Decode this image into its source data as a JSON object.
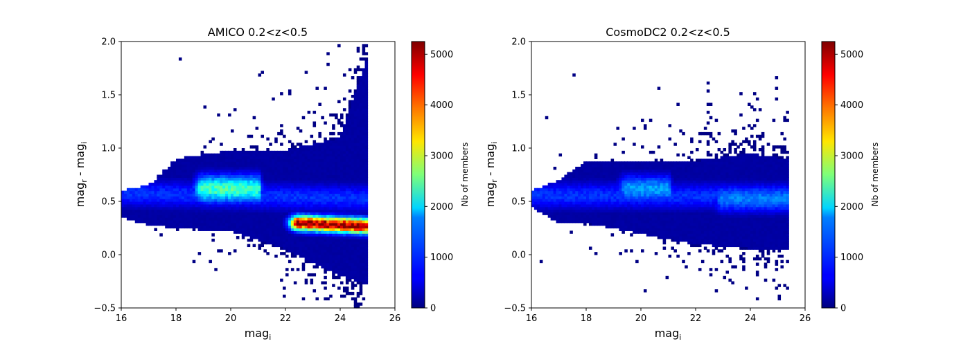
{
  "chart_data": [
    {
      "type": "heatmap",
      "title": "AMICO 0.2<z<0.5",
      "xlabel": "mag",
      "xlabel_sub": "i",
      "ylabel": {
        "p1": "mag",
        "s1": "r",
        "p2": " - mag",
        "s2": "i"
      },
      "xlim": [
        16,
        26
      ],
      "ylim": [
        -0.5,
        2.0
      ],
      "xticks": [
        "16",
        "18",
        "20",
        "22",
        "24",
        "26"
      ],
      "yticks": [
        "−0.5",
        "0.0",
        "0.5",
        "1.0",
        "1.5",
        "2.0"
      ],
      "colorbar": {
        "label": "Nb of members",
        "range": [
          0,
          5250
        ],
        "ticks": [
          "0",
          "1000",
          "2000",
          "3000",
          "4000",
          "5000"
        ],
        "colormap": "jet"
      },
      "grid": false,
      "density_features": [
        {
          "x": [
            16.0,
            25.1
          ],
          "y": [
            0.58,
            0.53
          ],
          "peak": 900,
          "note": "main band"
        },
        {
          "x": [
            19.0,
            21.0
          ],
          "y": [
            0.62,
            0.62
          ],
          "peak": 2300,
          "note": "red-sequence ridge"
        },
        {
          "x": [
            22.5,
            25.0
          ],
          "y": [
            0.3,
            0.27
          ],
          "peak": 5200,
          "note": "blue-cloud peak"
        }
      ],
      "band_extent": [
        {
          "x": 16.0,
          "y_low": 0.35,
          "y_high": 0.6
        },
        {
          "x": 17.0,
          "y_low": 0.28,
          "y_high": 0.65
        },
        {
          "x": 18.0,
          "y_low": 0.25,
          "y_high": 0.9
        },
        {
          "x": 20.0,
          "y_low": 0.22,
          "y_high": 0.98
        },
        {
          "x": 22.0,
          "y_low": 0.05,
          "y_high": 0.98
        },
        {
          "x": 24.0,
          "y_low": -0.2,
          "y_high": 1.1
        },
        {
          "x": 25.0,
          "y_low": -0.28,
          "y_high": 1.86
        }
      ]
    },
    {
      "type": "heatmap",
      "title": "CosmoDC2 0.2<z<0.5",
      "xlabel": "mag",
      "xlabel_sub": "i",
      "ylabel": {
        "p1": "mag",
        "s1": "r",
        "p2": " - mag",
        "s2": "i"
      },
      "xlim": [
        16,
        26
      ],
      "ylim": [
        -0.5,
        2.0
      ],
      "xticks": [
        "16",
        "18",
        "20",
        "22",
        "24",
        "26"
      ],
      "yticks": [
        "−0.5",
        "0.0",
        "0.5",
        "1.0",
        "1.5",
        "2.0"
      ],
      "colorbar": {
        "label": "Nb of members",
        "range": [
          0,
          5250
        ],
        "ticks": [
          "0",
          "1000",
          "2000",
          "3000",
          "4000",
          "5000"
        ],
        "colormap": "jet"
      },
      "grid": false,
      "density_features": [
        {
          "x": [
            16.0,
            25.4
          ],
          "y": [
            0.56,
            0.55
          ],
          "peak": 900,
          "note": "main band"
        },
        {
          "x": [
            19.5,
            21.0
          ],
          "y": [
            0.62,
            0.62
          ],
          "peak": 1500,
          "note": "red-sequence ridge"
        },
        {
          "x": [
            23.0,
            25.4
          ],
          "y": [
            0.53,
            0.53
          ],
          "peak": 1300,
          "note": "faint ridge"
        }
      ],
      "band_extent": [
        {
          "x": 16.0,
          "y_low": 0.45,
          "y_high": 0.6
        },
        {
          "x": 17.0,
          "y_low": 0.3,
          "y_high": 0.7
        },
        {
          "x": 18.0,
          "y_low": 0.3,
          "y_high": 0.88
        },
        {
          "x": 20.0,
          "y_low": 0.2,
          "y_high": 0.88
        },
        {
          "x": 22.0,
          "y_low": 0.1,
          "y_high": 0.88
        },
        {
          "x": 24.0,
          "y_low": 0.06,
          "y_high": 0.95
        },
        {
          "x": 25.4,
          "y_low": 0.06,
          "y_high": 0.9
        }
      ]
    }
  ]
}
